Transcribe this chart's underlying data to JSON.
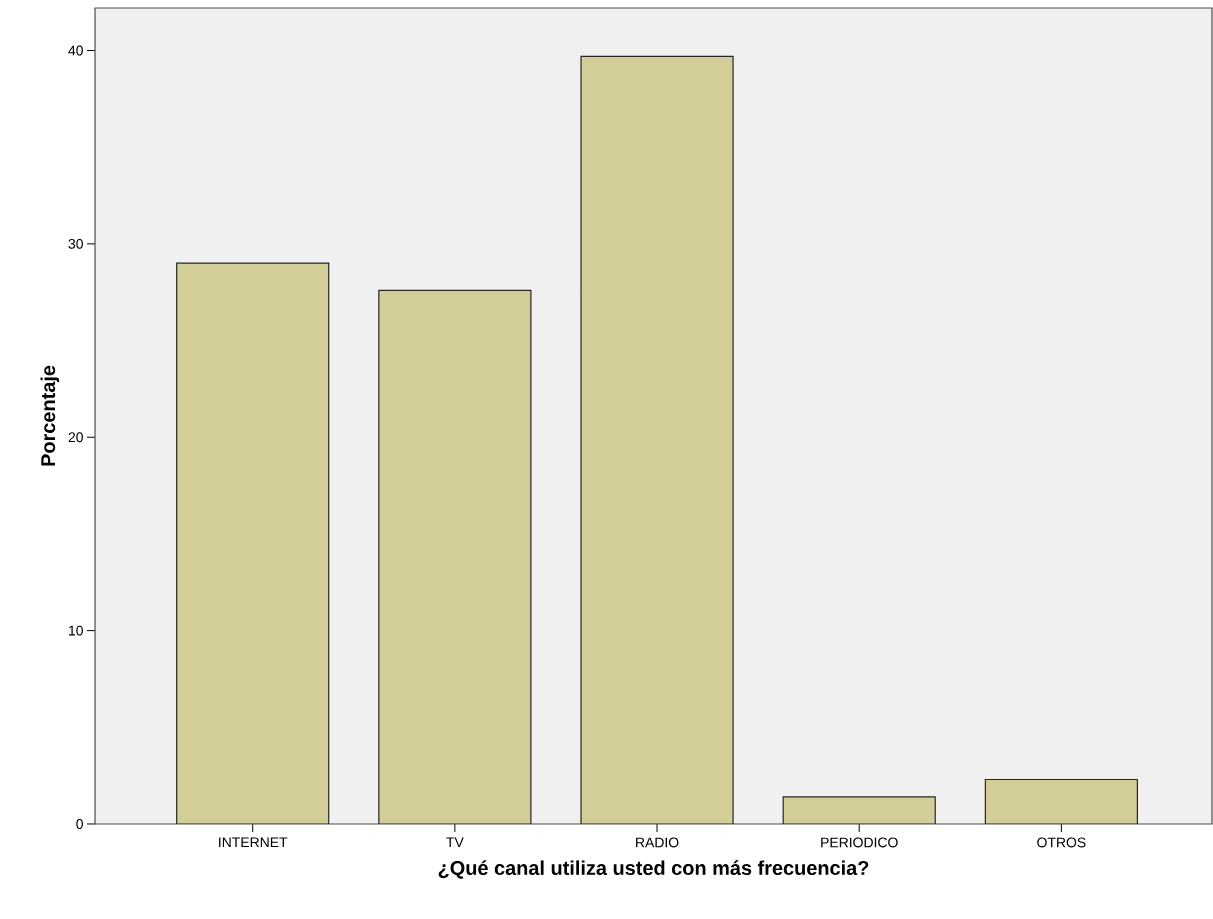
{
  "chart_data": {
    "type": "bar",
    "xlabel": "¿Qué canal utiliza usted con más frecuencia?",
    "ylabel": "Porcentaje",
    "categories": [
      "INTERNET",
      "TV",
      "RADIO",
      "PERIODICO",
      "OTROS"
    ],
    "values": [
      29.0,
      27.6,
      39.7,
      1.4,
      2.3
    ],
    "color": "#d3ce98",
    "ylim": [
      0,
      42.2
    ],
    "yticks": [
      0,
      10,
      20,
      30,
      40
    ],
    "grid": false
  }
}
